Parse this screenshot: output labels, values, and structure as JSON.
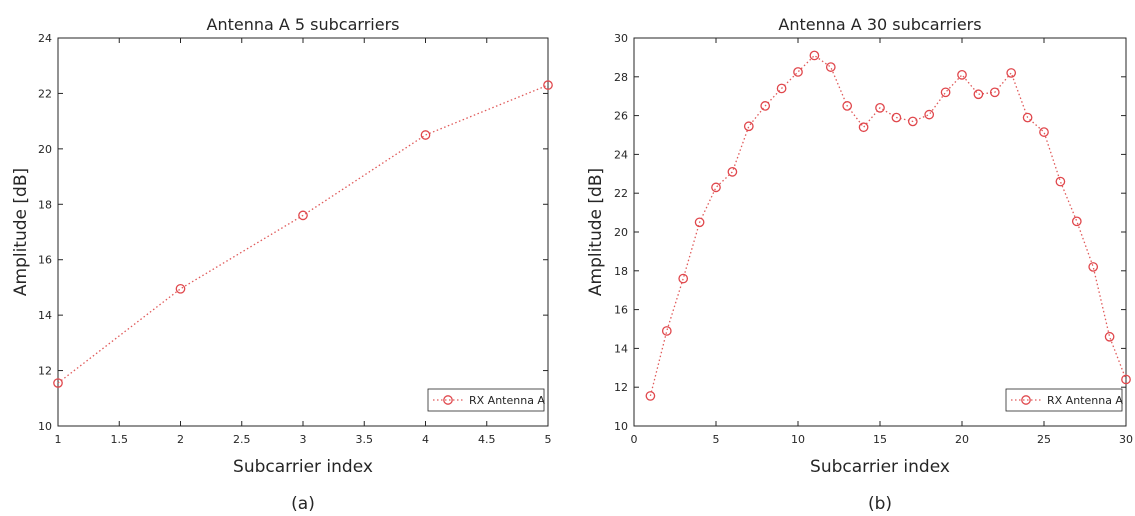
{
  "chart_data": [
    {
      "type": "line",
      "panel_label": "(a)",
      "title": "Antenna A 5 subcarriers",
      "xlabel": "Subcarrier index",
      "ylabel": "Amplitude [dB]",
      "xlim": [
        1,
        5
      ],
      "ylim": [
        10,
        24
      ],
      "xticks": [
        "1",
        "1.5",
        "2",
        "2.5",
        "3",
        "3.5",
        "4",
        "4.5",
        "5"
      ],
      "yticks": [
        "10",
        "12",
        "14",
        "16",
        "18",
        "20",
        "22",
        "24"
      ],
      "grid": false,
      "legend_position": "bottom-right",
      "series": [
        {
          "name": "RX Antenna A",
          "color": "#e0474c",
          "marker": "circle",
          "line_style": "dotted",
          "x": [
            1,
            2,
            3,
            4,
            5
          ],
          "values": [
            11.55,
            14.95,
            17.6,
            20.5,
            22.3
          ]
        }
      ]
    },
    {
      "type": "line",
      "panel_label": "(b)",
      "title": "Antenna A 30 subcarriers",
      "xlabel": "Subcarrier index",
      "ylabel": "Amplitude [dB]",
      "xlim": [
        0,
        30
      ],
      "ylim": [
        10,
        30
      ],
      "xticks": [
        "0",
        "5",
        "10",
        "15",
        "20",
        "25",
        "30"
      ],
      "yticks": [
        "10",
        "12",
        "14",
        "16",
        "18",
        "20",
        "22",
        "24",
        "26",
        "28",
        "30"
      ],
      "grid": false,
      "legend_position": "bottom-right",
      "series": [
        {
          "name": "RX Antenna A",
          "color": "#e0474c",
          "marker": "circle",
          "line_style": "dotted",
          "x": [
            1,
            2,
            3,
            4,
            5,
            6,
            7,
            8,
            9,
            10,
            11,
            12,
            13,
            14,
            15,
            16,
            17,
            18,
            19,
            20,
            21,
            22,
            23,
            24,
            25,
            26,
            27,
            28,
            29,
            30
          ],
          "values": [
            11.55,
            14.9,
            17.6,
            20.5,
            22.3,
            23.1,
            25.45,
            26.5,
            27.4,
            28.25,
            29.1,
            28.5,
            26.5,
            25.4,
            26.4,
            25.9,
            25.7,
            26.05,
            27.2,
            28.1,
            27.1,
            27.2,
            28.2,
            25.9,
            25.15,
            22.6,
            20.55,
            18.2,
            14.6,
            12.4
          ]
        }
      ]
    }
  ]
}
